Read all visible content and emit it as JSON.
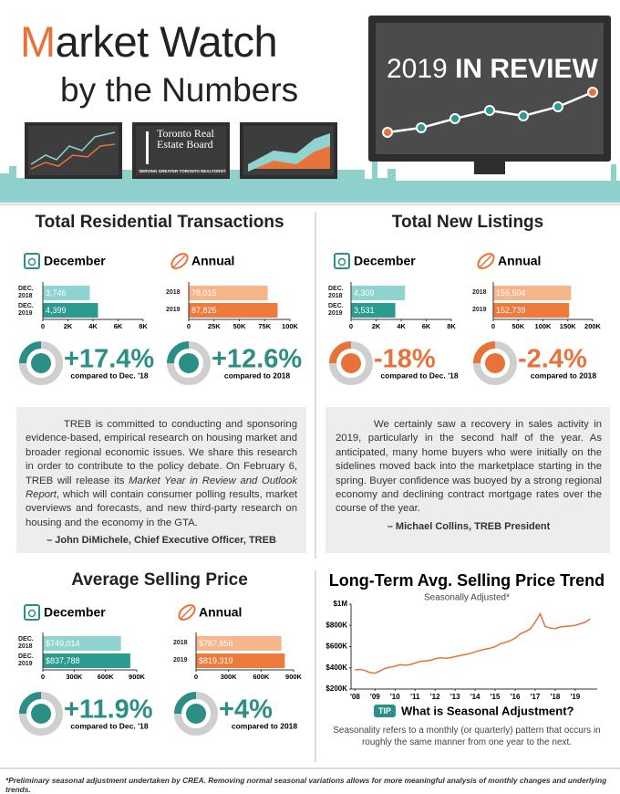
{
  "header": {
    "title": "Market Watch",
    "subtitle": "by the Numbers",
    "badge_year": "2019",
    "badge_text": "IN REVIEW",
    "logo_name": "Toronto Real Estate Board",
    "logo_tagline": "SERVING GREATER TORONTO REALTORS®"
  },
  "sections": [
    "Total Residential Transactions",
    "Total New Listings",
    "Average Selling Price"
  ],
  "chart_data": [
    {
      "type": "bar",
      "title": "December",
      "categories": [
        "DEC. 2018",
        "DEC. 2019"
      ],
      "values": [
        3746,
        4399
      ],
      "value_labels": [
        "3,746",
        "4,399"
      ],
      "colors": [
        "#8fd4d0",
        "#2b9a8f"
      ],
      "xlim": [
        0,
        8000
      ],
      "xticks": [
        0,
        {
          "value": 2000,
          "label": "2K"
        },
        {
          "value": 4000,
          "label": "4K"
        },
        {
          "value": 6000,
          "label": "6K"
        },
        {
          "value": 8000,
          "label": "8K"
        }
      ],
      "change": "+17.4%",
      "compare": "compared to Dec. '18",
      "accent": "#2b8f86"
    },
    {
      "type": "bar",
      "title": "Annual",
      "categories": [
        "2018",
        "2019"
      ],
      "values": [
        78015,
        87825
      ],
      "value_labels": [
        "78,015",
        "87,825"
      ],
      "colors": [
        "#f7b58c",
        "#ee7a3c"
      ],
      "xlim": [
        0,
        100000
      ],
      "xticks": [
        0,
        {
          "value": 25000,
          "label": "25K"
        },
        {
          "value": 50000,
          "label": "50K"
        },
        {
          "value": 75000,
          "label": "75K"
        },
        {
          "value": 100000,
          "label": "100K"
        }
      ],
      "change": "+12.6%",
      "compare": "compared to 2018",
      "accent": "#2b8f86"
    },
    {
      "type": "bar",
      "title": "December",
      "categories": [
        "DEC. 2018",
        "DEC. 2019"
      ],
      "values": [
        4309,
        3531
      ],
      "value_labels": [
        "4,309",
        "3,531"
      ],
      "colors": [
        "#8fd4d0",
        "#2b9a8f"
      ],
      "xlim": [
        0,
        8000
      ],
      "xticks": [
        0,
        {
          "value": 2000,
          "label": "2K"
        },
        {
          "value": 4000,
          "label": "4K"
        },
        {
          "value": 6000,
          "label": "6K"
        },
        {
          "value": 8000,
          "label": "8K"
        }
      ],
      "change": "-18%",
      "compare": "compared to Dec. '18",
      "accent": "#e8733a"
    },
    {
      "type": "bar",
      "title": "Annual",
      "categories": [
        "2018",
        "2019"
      ],
      "values": [
        156504,
        152739
      ],
      "value_labels": [
        "156,504",
        "152,739"
      ],
      "colors": [
        "#f7b58c",
        "#ee7a3c"
      ],
      "xlim": [
        0,
        200000
      ],
      "xticks": [
        0,
        {
          "value": 50000,
          "label": "50K"
        },
        {
          "value": 100000,
          "label": "100K"
        },
        {
          "value": 150000,
          "label": "150K"
        },
        {
          "value": 200000,
          "label": "200K"
        }
      ],
      "change": "-2.4%",
      "compare": "compared to 2018",
      "accent": "#e8733a"
    },
    {
      "type": "bar",
      "title": "December",
      "categories": [
        "DEC. 2018",
        "DEC. 2019"
      ],
      "values": [
        749014,
        837788
      ],
      "value_labels": [
        "$749,014",
        "$837,788"
      ],
      "colors": [
        "#8fd4d0",
        "#2b9a8f"
      ],
      "xlim": [
        0,
        900000
      ],
      "xticks": [
        0,
        {
          "value": 300000,
          "label": "300K"
        },
        {
          "value": 600000,
          "label": "600K"
        },
        {
          "value": 900000,
          "label": "900K"
        }
      ],
      "change": "+11.9%",
      "compare": "compared to Dec. '18",
      "accent": "#2b8f86"
    },
    {
      "type": "bar",
      "title": "Annual",
      "categories": [
        "2018",
        "2019"
      ],
      "values": [
        787856,
        819319
      ],
      "value_labels": [
        "$787,856",
        "$819,319"
      ],
      "colors": [
        "#f7b58c",
        "#ee7a3c"
      ],
      "xlim": [
        0,
        900000
      ],
      "xticks": [
        0,
        {
          "value": 300000,
          "label": "300K"
        },
        {
          "value": 600000,
          "label": "600K"
        },
        {
          "value": 900000,
          "label": "900K"
        }
      ],
      "change": "+4%",
      "compare": "compared to 2018",
      "accent": "#2b8f86"
    },
    {
      "type": "line",
      "title": "Long-Term Avg. Selling Price Trend",
      "subtitle": "Seasonally Adjusted*",
      "color": "#e8733a",
      "x": [
        2008,
        2008.25,
        2008.5,
        2008.75,
        2009,
        2009.25,
        2009.5,
        2009.75,
        2010,
        2010.25,
        2010.5,
        2010.75,
        2011,
        2011.25,
        2011.5,
        2011.75,
        2012,
        2012.25,
        2012.5,
        2012.75,
        2013,
        2013.25,
        2013.5,
        2013.75,
        2014,
        2014.25,
        2014.5,
        2014.75,
        2015,
        2015.25,
        2015.5,
        2015.75,
        2016,
        2016.25,
        2016.5,
        2016.75,
        2017,
        2017.25,
        2017.5,
        2017.75,
        2018,
        2018.25,
        2018.5,
        2018.75,
        2019,
        2019.25,
        2019.5,
        2019.75
      ],
      "values": [
        380000,
        385000,
        375000,
        355000,
        350000,
        370000,
        395000,
        405000,
        415000,
        430000,
        425000,
        430000,
        445000,
        460000,
        465000,
        470000,
        485000,
        495000,
        490000,
        495000,
        505000,
        515000,
        525000,
        535000,
        550000,
        565000,
        575000,
        585000,
        600000,
        625000,
        640000,
        655000,
        680000,
        720000,
        740000,
        765000,
        830000,
        910000,
        790000,
        775000,
        770000,
        785000,
        790000,
        795000,
        800000,
        815000,
        830000,
        860000
      ],
      "xlim": [
        2007.8,
        2020.1
      ],
      "xticks": [
        {
          "value": 2008,
          "label": "'08"
        },
        {
          "value": 2009,
          "label": "'09"
        },
        {
          "value": 2010,
          "label": "'10"
        },
        {
          "value": 2011,
          "label": "'11"
        },
        {
          "value": 2012,
          "label": "'12"
        },
        {
          "value": 2013,
          "label": "'13"
        },
        {
          "value": 2014,
          "label": "'14"
        },
        {
          "value": 2015,
          "label": "'15"
        },
        {
          "value": 2016,
          "label": "'16"
        },
        {
          "value": 2017,
          "label": "'17"
        },
        {
          "value": 2018,
          "label": "'18"
        },
        {
          "value": 2019,
          "label": "'19"
        }
      ],
      "ylim": [
        200000,
        1000000
      ],
      "yticks": [
        {
          "value": 200000,
          "label": "$200K"
        },
        {
          "value": 400000,
          "label": "$400K"
        },
        {
          "value": 600000,
          "label": "$600K"
        },
        {
          "value": 800000,
          "label": "$800K"
        },
        {
          "value": 1000000,
          "label": "$1M"
        }
      ]
    }
  ],
  "quotes": [
    {
      "parts": [
        "TREB is committed to conducting and sponsoring evidence-based, empirical research on housing market and broader regional economic issues. We share this research in order to contribute to the policy debate. On February 6, TREB will release its ",
        "Market Year in Review and Outlook Report",
        ", which will contain consumer polling results, market overviews and forecasts, and new third-party research on housing and the economy in the GTA."
      ],
      "author": "– John DiMichele, Chief Executive Officer, TREB"
    },
    {
      "parts": [
        "We certainly saw a recovery in sales activity in 2019, particularly in the second half of the year. As anticipated, many home buyers who were initially on the sidelines moved back into the marketplace starting in the spring. Buyer confidence was buoyed by a strong regional economy and declining contract mortgage rates over the course of the year."
      ],
      "author": "– Michael Collins, TREB President"
    }
  ],
  "tip": {
    "badge": "TIP",
    "title": "What is Seasonal Adjustment?",
    "body": "Seasonality refers to a monthly (or quarterly) pattern that occurs in roughly the same manner from one year to the next."
  },
  "footnote": "*Preliminary seasonal adjustment undertaken by CREA. Removing normal seasonal variations allows for more meaningful analysis of monthly changes and underlying trends."
}
